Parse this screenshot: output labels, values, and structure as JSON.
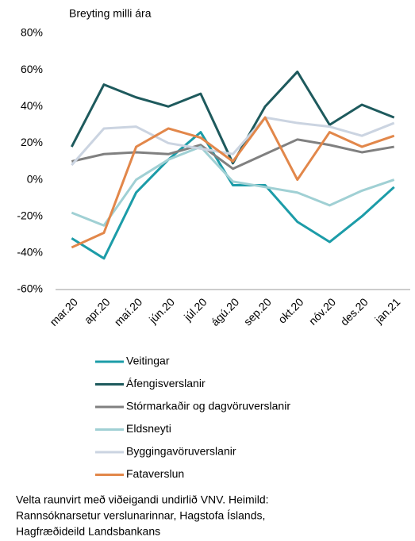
{
  "chart_data": {
    "type": "line",
    "y_axis_label": "Breyting milli ára",
    "categories": [
      "mar.20",
      "apr.20",
      "maí.20",
      "jún.20",
      "júl.20",
      "ágú.20",
      "sep.20",
      "okt.20",
      "nóv.20",
      "des.20",
      "jan.21"
    ],
    "series": [
      {
        "name": "Veitingar",
        "color": "#1c9ca8",
        "values": [
          -32,
          -43,
          -7,
          11,
          26,
          -3,
          -3,
          -23,
          -34,
          -20,
          -4
        ]
      },
      {
        "name": "Áfengisverslanir",
        "color": "#1e5a5d",
        "values": [
          18,
          52,
          45,
          40,
          47,
          9,
          40,
          59,
          30,
          41,
          34
        ]
      },
      {
        "name": "Stórmarkaðir og dagvöruverslanir",
        "color": "#808080",
        "values": [
          10,
          14,
          15,
          14,
          19,
          6,
          14,
          22,
          19,
          15,
          18
        ]
      },
      {
        "name": "Eldsneyti",
        "color": "#a0d0d4",
        "values": [
          -18,
          -25,
          0,
          11,
          18,
          -1,
          -4,
          -7,
          -14,
          -6,
          0
        ]
      },
      {
        "name": "Byggingavöruverslanir",
        "color": "#cbd4e1",
        "values": [
          8,
          28,
          29,
          20,
          17,
          14,
          34,
          31,
          29,
          24,
          31
        ]
      },
      {
        "name": "Fataverslun",
        "color": "#e2874a",
        "values": [
          -37,
          -29,
          18,
          28,
          23,
          10,
          34,
          0,
          26,
          18,
          24
        ]
      }
    ],
    "ylim": [
      -60,
      80
    ],
    "yticks": [
      {
        "value": -60,
        "label": "-60%"
      },
      {
        "value": -40,
        "label": "-40%"
      },
      {
        "value": -20,
        "label": "-20%"
      },
      {
        "value": 0,
        "label": "0%"
      },
      {
        "value": 20,
        "label": "20%"
      },
      {
        "value": 40,
        "label": "40%"
      },
      {
        "value": 60,
        "label": "60%"
      },
      {
        "value": 80,
        "label": "80%"
      }
    ],
    "grid": false,
    "note_lines": [
      "Velta raunvirt með viðeigandi undirlið VNV. Heimild:",
      "Rannsóknarsetur verslunarinnar, Hagstofa Íslands,",
      "Hagfræðideild Landsbankans"
    ]
  }
}
